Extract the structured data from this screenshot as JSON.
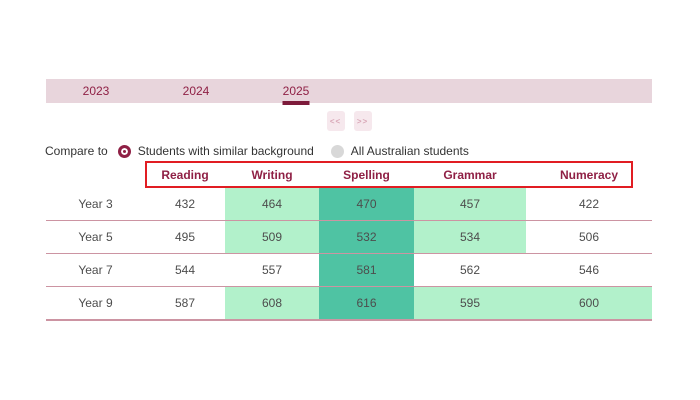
{
  "colors": {
    "accent_maroon": "#8f2045",
    "tab_bar_bg": "#e8d5dc",
    "active_tab_underline": "#7d1b3b",
    "header_outline_red": "#e11d23",
    "highlight_light_green": "#b2f1cb",
    "highlight_teal": "#4fc3a3",
    "row_divider_pink": "#cc94a2",
    "pager_button_bg": "#f6e8ed",
    "pager_button_text": "#d9a7b7",
    "radio_unselected_gray": "#d8d8d8",
    "body_text": "#4d4d4d"
  },
  "tabs": {
    "items": [
      {
        "label": "2023",
        "active": false
      },
      {
        "label": "2024",
        "active": false
      },
      {
        "label": "2025",
        "active": true
      }
    ]
  },
  "pager": {
    "prev_label": "<<",
    "next_label": ">>"
  },
  "compare": {
    "label": "Compare to",
    "options": [
      {
        "label": "Students with similar background",
        "selected": true
      },
      {
        "label": "All Australian students",
        "selected": false
      }
    ]
  },
  "results_table": {
    "columns": [
      "Reading",
      "Writing",
      "Spelling",
      "Grammar",
      "Numeracy"
    ],
    "rows": [
      {
        "label": "Year 3",
        "values": [
          "432",
          "464",
          "470",
          "457",
          "422"
        ],
        "highlights": [
          "none",
          "light",
          "strong",
          "light",
          "none"
        ]
      },
      {
        "label": "Year 5",
        "values": [
          "495",
          "509",
          "532",
          "534",
          "506"
        ],
        "highlights": [
          "none",
          "light",
          "strong",
          "light",
          "none"
        ]
      },
      {
        "label": "Year 7",
        "values": [
          "544",
          "557",
          "581",
          "562",
          "546"
        ],
        "highlights": [
          "none",
          "none",
          "strong",
          "none",
          "none"
        ]
      },
      {
        "label": "Year 9",
        "values": [
          "587",
          "608",
          "616",
          "595",
          "600"
        ],
        "highlights": [
          "none",
          "light",
          "strong",
          "light",
          "light"
        ]
      }
    ]
  }
}
